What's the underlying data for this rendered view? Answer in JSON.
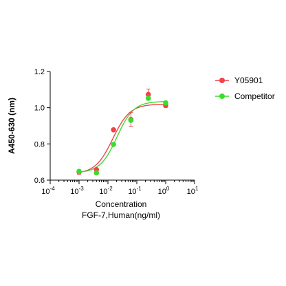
{
  "chart_data": {
    "type": "scatter",
    "ylabel": "A450-630 (nm)",
    "xlabel": "Concentration",
    "xlabel_sub": "FGF-7,Human(ng/ml)",
    "xscale": "log",
    "xlim": [
      0.0001,
      10
    ],
    "ylim": [
      0.6,
      1.2
    ],
    "x_tick_labels": [
      {
        "base": "10",
        "exp": "-4"
      },
      {
        "base": "10",
        "exp": "-3"
      },
      {
        "base": "10",
        "exp": "-2"
      },
      {
        "base": "10",
        "exp": "-1"
      },
      {
        "base": "10",
        "exp": "0"
      },
      {
        "base": "10",
        "exp": "1"
      }
    ],
    "y_ticks": [
      "0.6",
      "0.8",
      "1.0",
      "1.2"
    ],
    "legend_position": "top-right",
    "series": [
      {
        "name": "Y05901",
        "color": "#f0444a",
        "x": [
          0.001,
          0.004,
          0.0156,
          0.0625,
          0.25,
          1.0
        ],
        "y": [
          0.645,
          0.658,
          0.878,
          0.935,
          1.073,
          1.012
        ],
        "err": [
          0.012,
          0.005,
          0.005,
          0.038,
          0.03,
          0.01
        ],
        "fit": {
          "bottom": 0.635,
          "top": 1.02,
          "ec50": 0.0146,
          "hill": 1.45
        }
      },
      {
        "name": "Competitor",
        "color": "#3ddc2c",
        "x": [
          0.001,
          0.004,
          0.0156,
          0.0625,
          0.25,
          1.0
        ],
        "y": [
          0.648,
          0.64,
          0.797,
          0.93,
          1.052,
          1.027
        ],
        "err": [
          0.008,
          0.003,
          0.005,
          0.008,
          0.006,
          0.005
        ],
        "fit": {
          "bottom": 0.64,
          "top": 1.035,
          "ec50": 0.0205,
          "hill": 1.5
        }
      }
    ]
  }
}
